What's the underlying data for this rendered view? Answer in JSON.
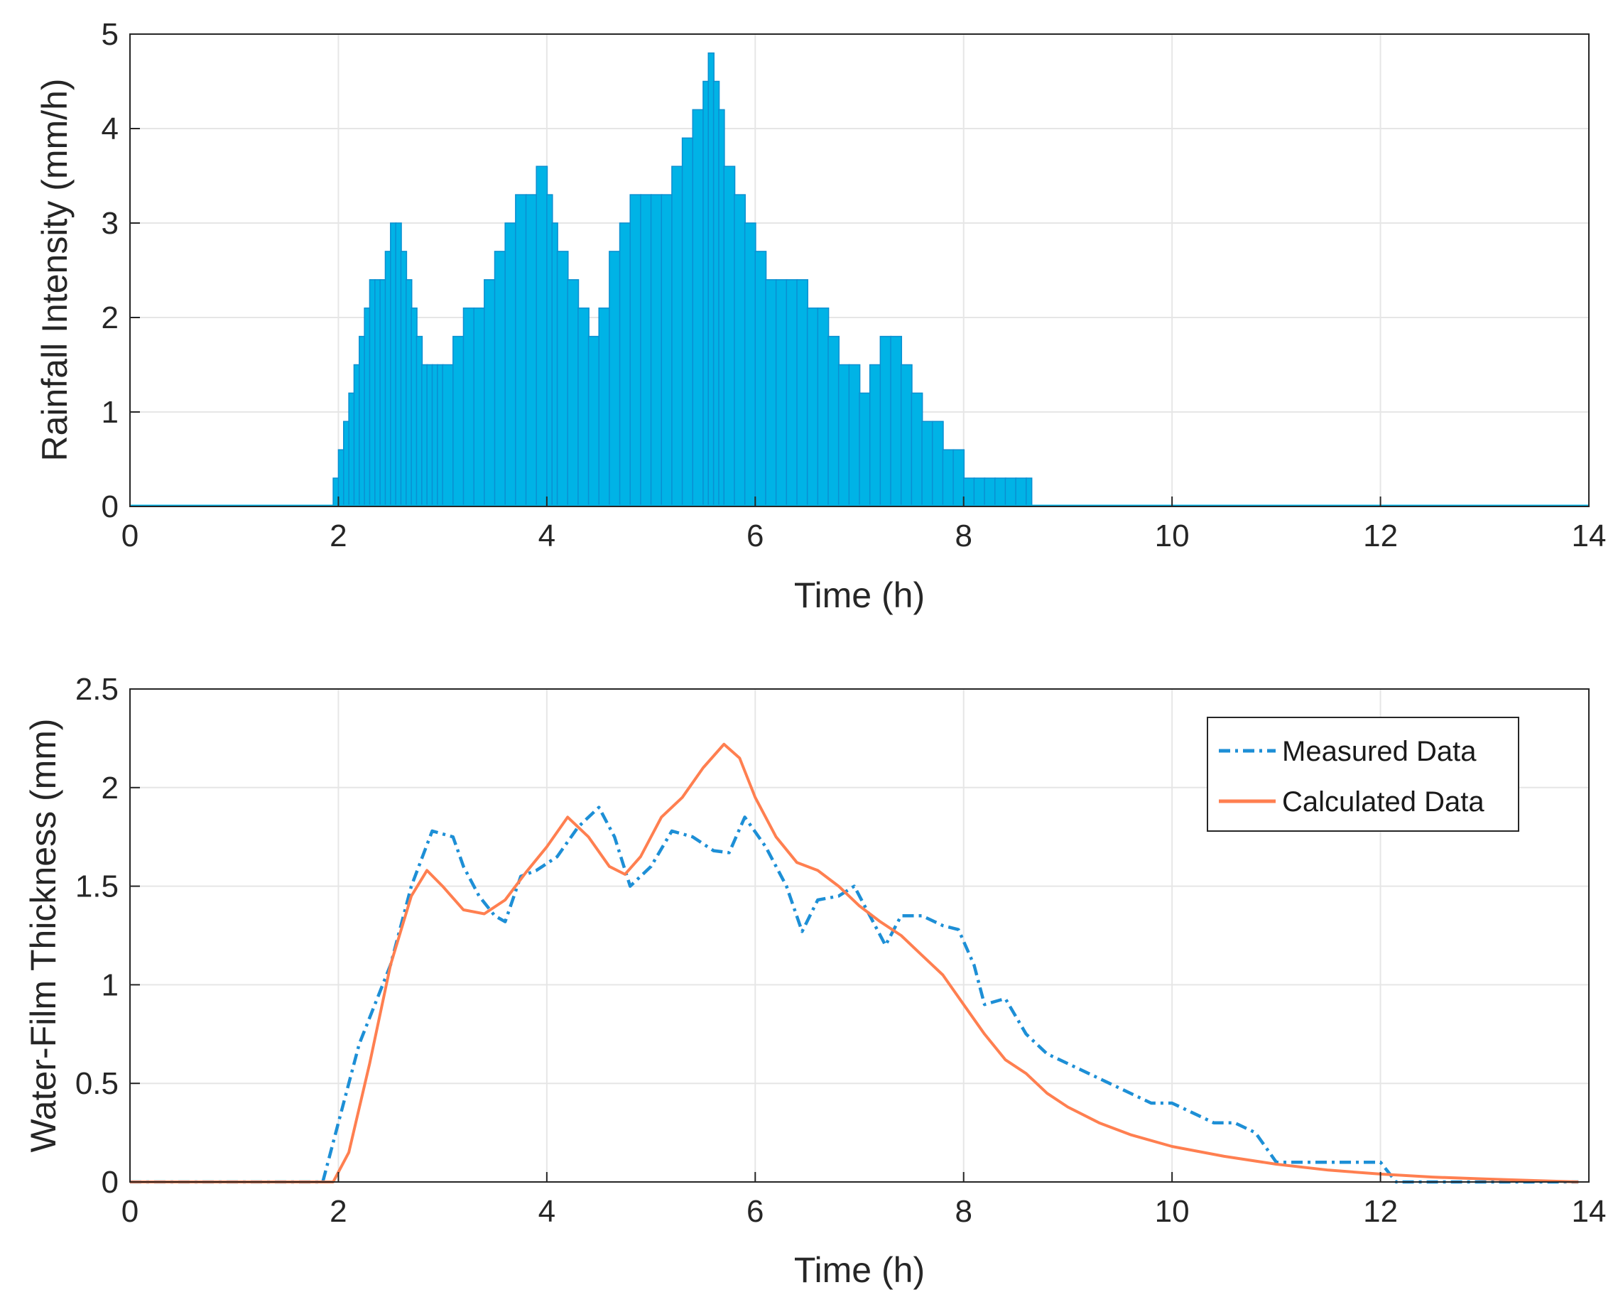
{
  "colors": {
    "rain_fill": "#00b3e6",
    "rain_edge": "#0a8fd1",
    "measured": "#1d8fd6",
    "calculated": "#ff7f50",
    "grid": "#e6e6e6",
    "axis": "#262626"
  },
  "chart_data": [
    {
      "type": "bar",
      "title": "",
      "xlabel": "Time (h)",
      "ylabel": "Rainfall Intensity (mm/h)",
      "xlim": [
        0,
        14
      ],
      "ylim": [
        0,
        5
      ],
      "xticks": [
        0,
        2,
        4,
        6,
        8,
        10,
        12,
        14
      ],
      "yticks": [
        0,
        1,
        2,
        3,
        4,
        5
      ],
      "grid": true,
      "series": [
        {
          "name": "Rainfall Intensity",
          "x": [
            1.95,
            2.0,
            2.05,
            2.1,
            2.15,
            2.2,
            2.25,
            2.3,
            2.35,
            2.4,
            2.45,
            2.5,
            2.55,
            2.6,
            2.65,
            2.7,
            2.75,
            2.8,
            2.85,
            2.9,
            2.95,
            3.0,
            3.1,
            3.2,
            3.3,
            3.4,
            3.5,
            3.6,
            3.7,
            3.8,
            3.9,
            4.0,
            4.05,
            4.1,
            4.2,
            4.3,
            4.4,
            4.5,
            4.6,
            4.7,
            4.8,
            4.9,
            5.0,
            5.1,
            5.2,
            5.3,
            5.4,
            5.5,
            5.55,
            5.6,
            5.65,
            5.7,
            5.8,
            5.9,
            6.0,
            6.1,
            6.2,
            6.3,
            6.4,
            6.5,
            6.6,
            6.7,
            6.8,
            6.9,
            7.0,
            7.1,
            7.2,
            7.3,
            7.4,
            7.5,
            7.6,
            7.7,
            7.8,
            7.9,
            8.0,
            8.1,
            8.2,
            8.3,
            8.4,
            8.5,
            8.6,
            8.65
          ],
          "values": [
            0.3,
            0.6,
            0.9,
            1.2,
            1.5,
            1.8,
            2.1,
            2.4,
            2.4,
            2.4,
            2.7,
            3.0,
            3.0,
            2.7,
            2.4,
            2.1,
            1.8,
            1.5,
            1.5,
            1.5,
            1.5,
            1.5,
            1.8,
            2.1,
            2.1,
            2.4,
            2.7,
            3.0,
            3.3,
            3.3,
            3.6,
            3.3,
            3.0,
            2.7,
            2.4,
            2.1,
            1.8,
            2.1,
            2.7,
            3.0,
            3.3,
            3.3,
            3.3,
            3.3,
            3.6,
            3.9,
            4.2,
            4.5,
            4.8,
            4.5,
            4.2,
            3.6,
            3.3,
            3.0,
            2.7,
            2.4,
            2.4,
            2.4,
            2.4,
            2.1,
            2.1,
            1.8,
            1.5,
            1.5,
            1.2,
            1.5,
            1.8,
            1.8,
            1.5,
            1.2,
            0.9,
            0.9,
            0.6,
            0.6,
            0.3,
            0.3,
            0.3,
            0.3,
            0.3,
            0.3,
            0.3,
            0.0
          ]
        }
      ]
    },
    {
      "type": "line",
      "title": "",
      "xlabel": "Time (h)",
      "ylabel": "Water-Film Thickness (mm)",
      "xlim": [
        0,
        14
      ],
      "ylim": [
        0,
        2.5
      ],
      "xticks": [
        0,
        2,
        4,
        6,
        8,
        10,
        12,
        14
      ],
      "yticks": [
        0,
        0.5,
        1,
        1.5,
        2,
        2.5
      ],
      "grid": true,
      "legend": "top-right",
      "series": [
        {
          "name": "Measured Data",
          "style": "dash-dot",
          "x": [
            0,
            1.85,
            2.0,
            2.2,
            2.5,
            2.7,
            2.9,
            3.1,
            3.2,
            3.35,
            3.5,
            3.6,
            3.75,
            3.9,
            4.1,
            4.3,
            4.5,
            4.65,
            4.8,
            5.0,
            5.2,
            5.4,
            5.6,
            5.75,
            5.9,
            6.1,
            6.3,
            6.45,
            6.6,
            6.8,
            6.95,
            7.1,
            7.25,
            7.4,
            7.6,
            7.8,
            7.95,
            8.1,
            8.2,
            8.4,
            8.6,
            8.8,
            9.0,
            9.2,
            9.4,
            9.6,
            9.8,
            10.0,
            10.2,
            10.4,
            10.6,
            10.8,
            11.0,
            11.5,
            12.0,
            12.15,
            12.5,
            13.0,
            13.5,
            13.9
          ],
          "values": [
            0,
            0,
            0.3,
            0.7,
            1.1,
            1.5,
            1.78,
            1.75,
            1.6,
            1.45,
            1.35,
            1.32,
            1.55,
            1.58,
            1.65,
            1.8,
            1.9,
            1.75,
            1.5,
            1.6,
            1.78,
            1.75,
            1.68,
            1.67,
            1.85,
            1.7,
            1.5,
            1.27,
            1.43,
            1.45,
            1.5,
            1.35,
            1.2,
            1.35,
            1.35,
            1.3,
            1.28,
            1.1,
            0.9,
            0.93,
            0.75,
            0.65,
            0.6,
            0.55,
            0.5,
            0.45,
            0.4,
            0.4,
            0.35,
            0.3,
            0.3,
            0.25,
            0.1,
            0.1,
            0.1,
            0.0,
            0.0,
            0.0,
            0.0,
            0.0
          ]
        },
        {
          "name": "Calculated Data",
          "style": "solid",
          "x": [
            0,
            1.95,
            2.1,
            2.3,
            2.5,
            2.7,
            2.85,
            3.0,
            3.2,
            3.4,
            3.6,
            3.8,
            4.0,
            4.2,
            4.4,
            4.6,
            4.75,
            4.9,
            5.1,
            5.3,
            5.5,
            5.7,
            5.85,
            6.0,
            6.2,
            6.4,
            6.6,
            6.8,
            7.0,
            7.2,
            7.4,
            7.6,
            7.8,
            8.0,
            8.2,
            8.4,
            8.6,
            8.8,
            9.0,
            9.3,
            9.6,
            10.0,
            10.5,
            11.0,
            11.5,
            12.0,
            12.5,
            13.0,
            13.5,
            13.9
          ],
          "values": [
            0,
            0,
            0.15,
            0.6,
            1.1,
            1.45,
            1.58,
            1.5,
            1.38,
            1.36,
            1.43,
            1.57,
            1.7,
            1.85,
            1.75,
            1.6,
            1.56,
            1.65,
            1.85,
            1.95,
            2.1,
            2.22,
            2.15,
            1.95,
            1.75,
            1.62,
            1.58,
            1.5,
            1.4,
            1.32,
            1.25,
            1.15,
            1.05,
            0.9,
            0.75,
            0.62,
            0.55,
            0.45,
            0.38,
            0.3,
            0.24,
            0.18,
            0.13,
            0.09,
            0.06,
            0.04,
            0.025,
            0.015,
            0.007,
            0.0
          ]
        }
      ]
    }
  ]
}
